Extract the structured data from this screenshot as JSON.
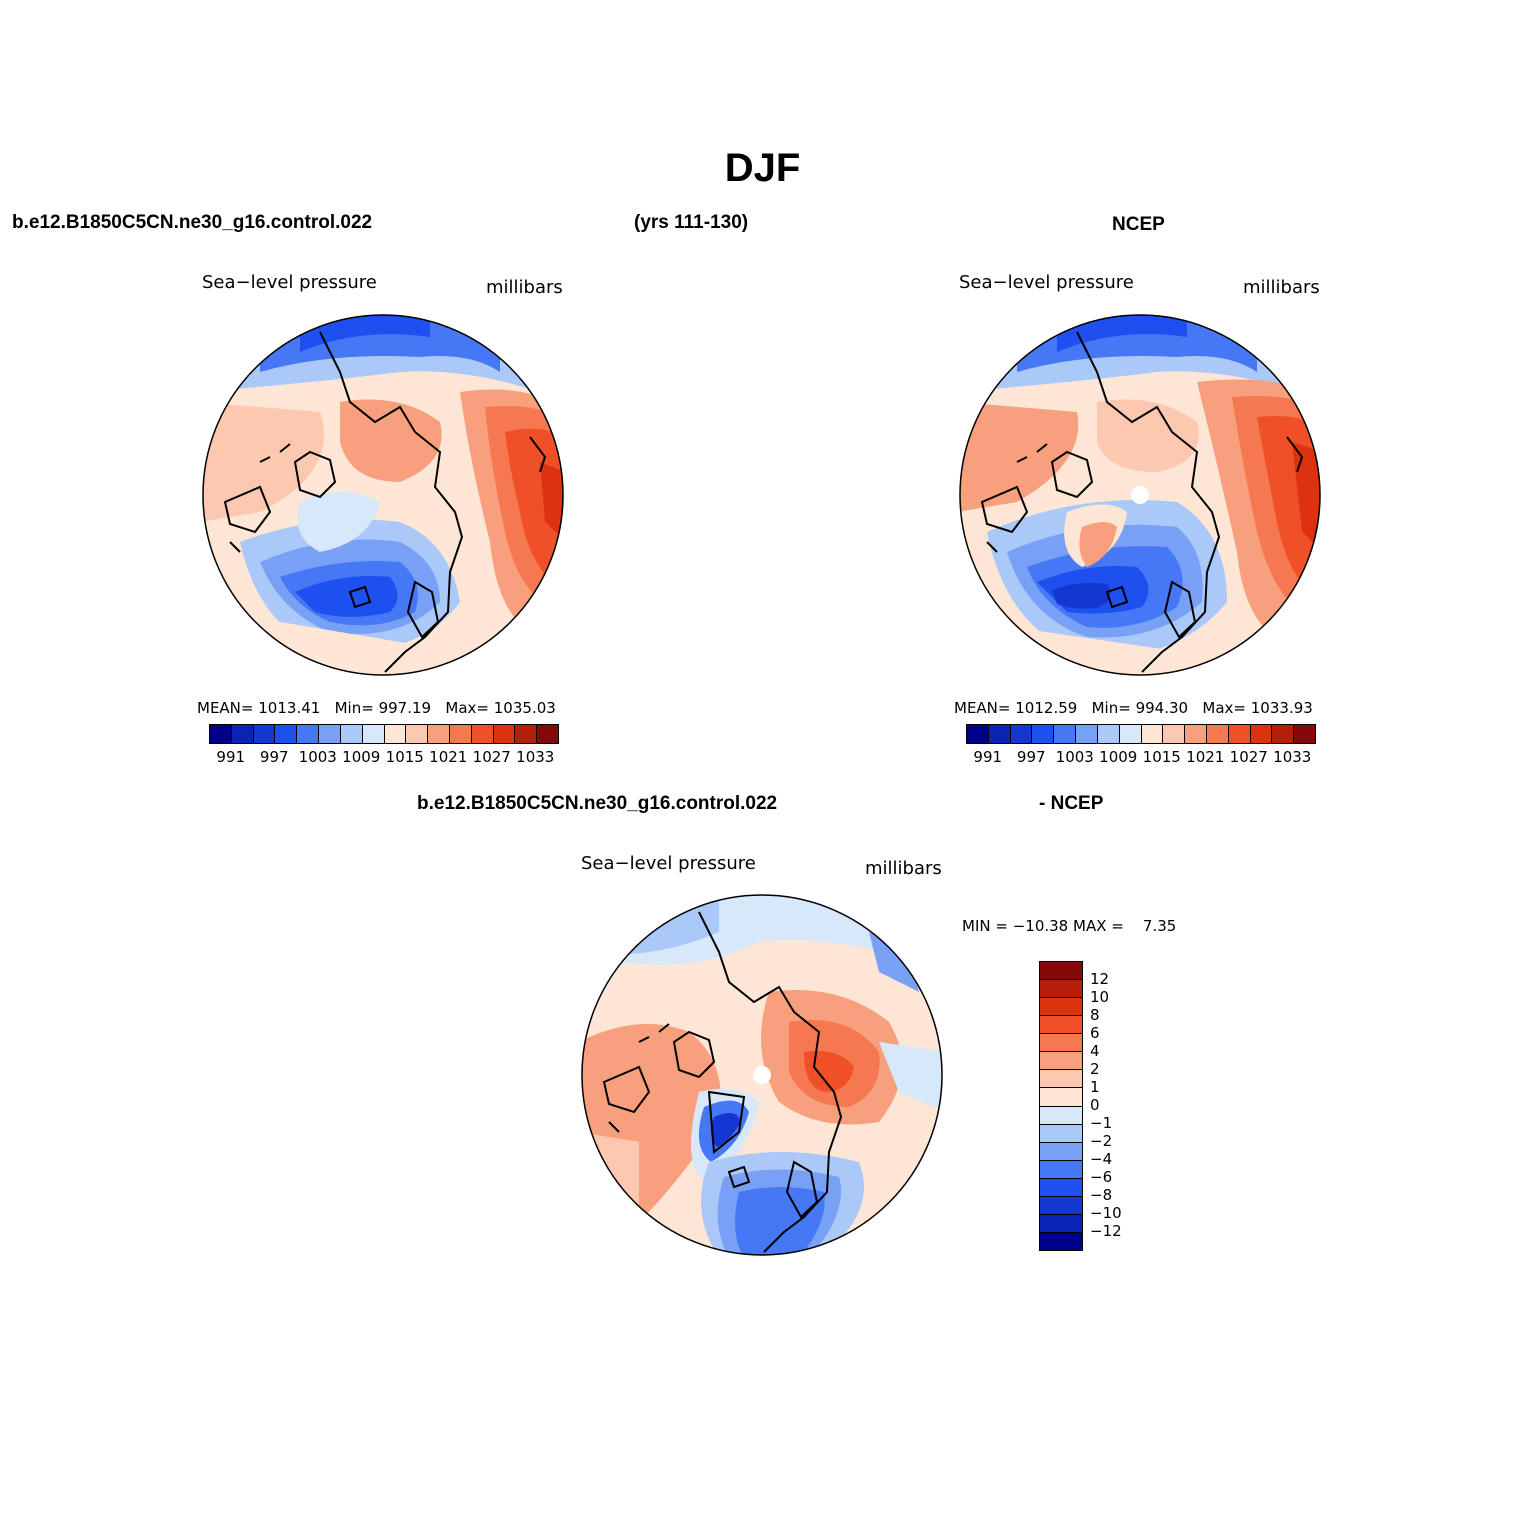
{
  "title": "DJF",
  "header": {
    "case_name": "b.e12.B1850C5CN.ne30_g16.control.022",
    "years": "(yrs 111-130)",
    "obs_name": "NCEP",
    "diff_case": "b.e12.B1850C5CN.ne30_g16.control.022",
    "diff_obs": "- NCEP"
  },
  "panels": {
    "model": {
      "variable": "Sea−level pressure",
      "units": "millibars",
      "mean_label": "MEAN=",
      "mean": "1013.41",
      "min_label": "Min=",
      "min": "997.19",
      "max_label": "Max=",
      "max": "1035.03"
    },
    "obs": {
      "variable": "Sea−level pressure",
      "units": "millibars",
      "mean_label": "MEAN=",
      "mean": "1012.59",
      "min_label": "Min=",
      "min": "994.30",
      "max_label": "Max=",
      "max": "1033.93"
    },
    "diff": {
      "variable": "Sea−level pressure",
      "units": "millibars",
      "min_label": "MIN =",
      "min": "−10.38",
      "max_label": "MAX =",
      "max": "7.35"
    }
  },
  "abs_colorbar": {
    "colors": [
      "#00008b",
      "#0a23b4",
      "#1437d2",
      "#1e50f0",
      "#4678f5",
      "#78a0f5",
      "#aac8f8",
      "#d7e8fa",
      "#fde6d6",
      "#fcc8b0",
      "#f8a07d",
      "#f57850",
      "#f05028",
      "#dc3210",
      "#b41e0a",
      "#820a0a"
    ],
    "labels": [
      "991",
      "997",
      "1003",
      "1009",
      "1015",
      "1021",
      "1027",
      "1033"
    ]
  },
  "diff_colorbar": {
    "colors": [
      "#820a0a",
      "#b41e0a",
      "#dc3210",
      "#f05028",
      "#f57850",
      "#f8a07d",
      "#fcc8b0",
      "#fde6d6",
      "#d7e8fa",
      "#aac8f8",
      "#78a0f5",
      "#4678f5",
      "#1e50f0",
      "#1437d2",
      "#0a23b4",
      "#00008b"
    ],
    "labels": [
      "12",
      "10",
      "8",
      "6",
      "4",
      "2",
      "1",
      "0",
      "−1",
      "−2",
      "−4",
      "−6",
      "−8",
      "−10",
      "−12"
    ]
  }
}
